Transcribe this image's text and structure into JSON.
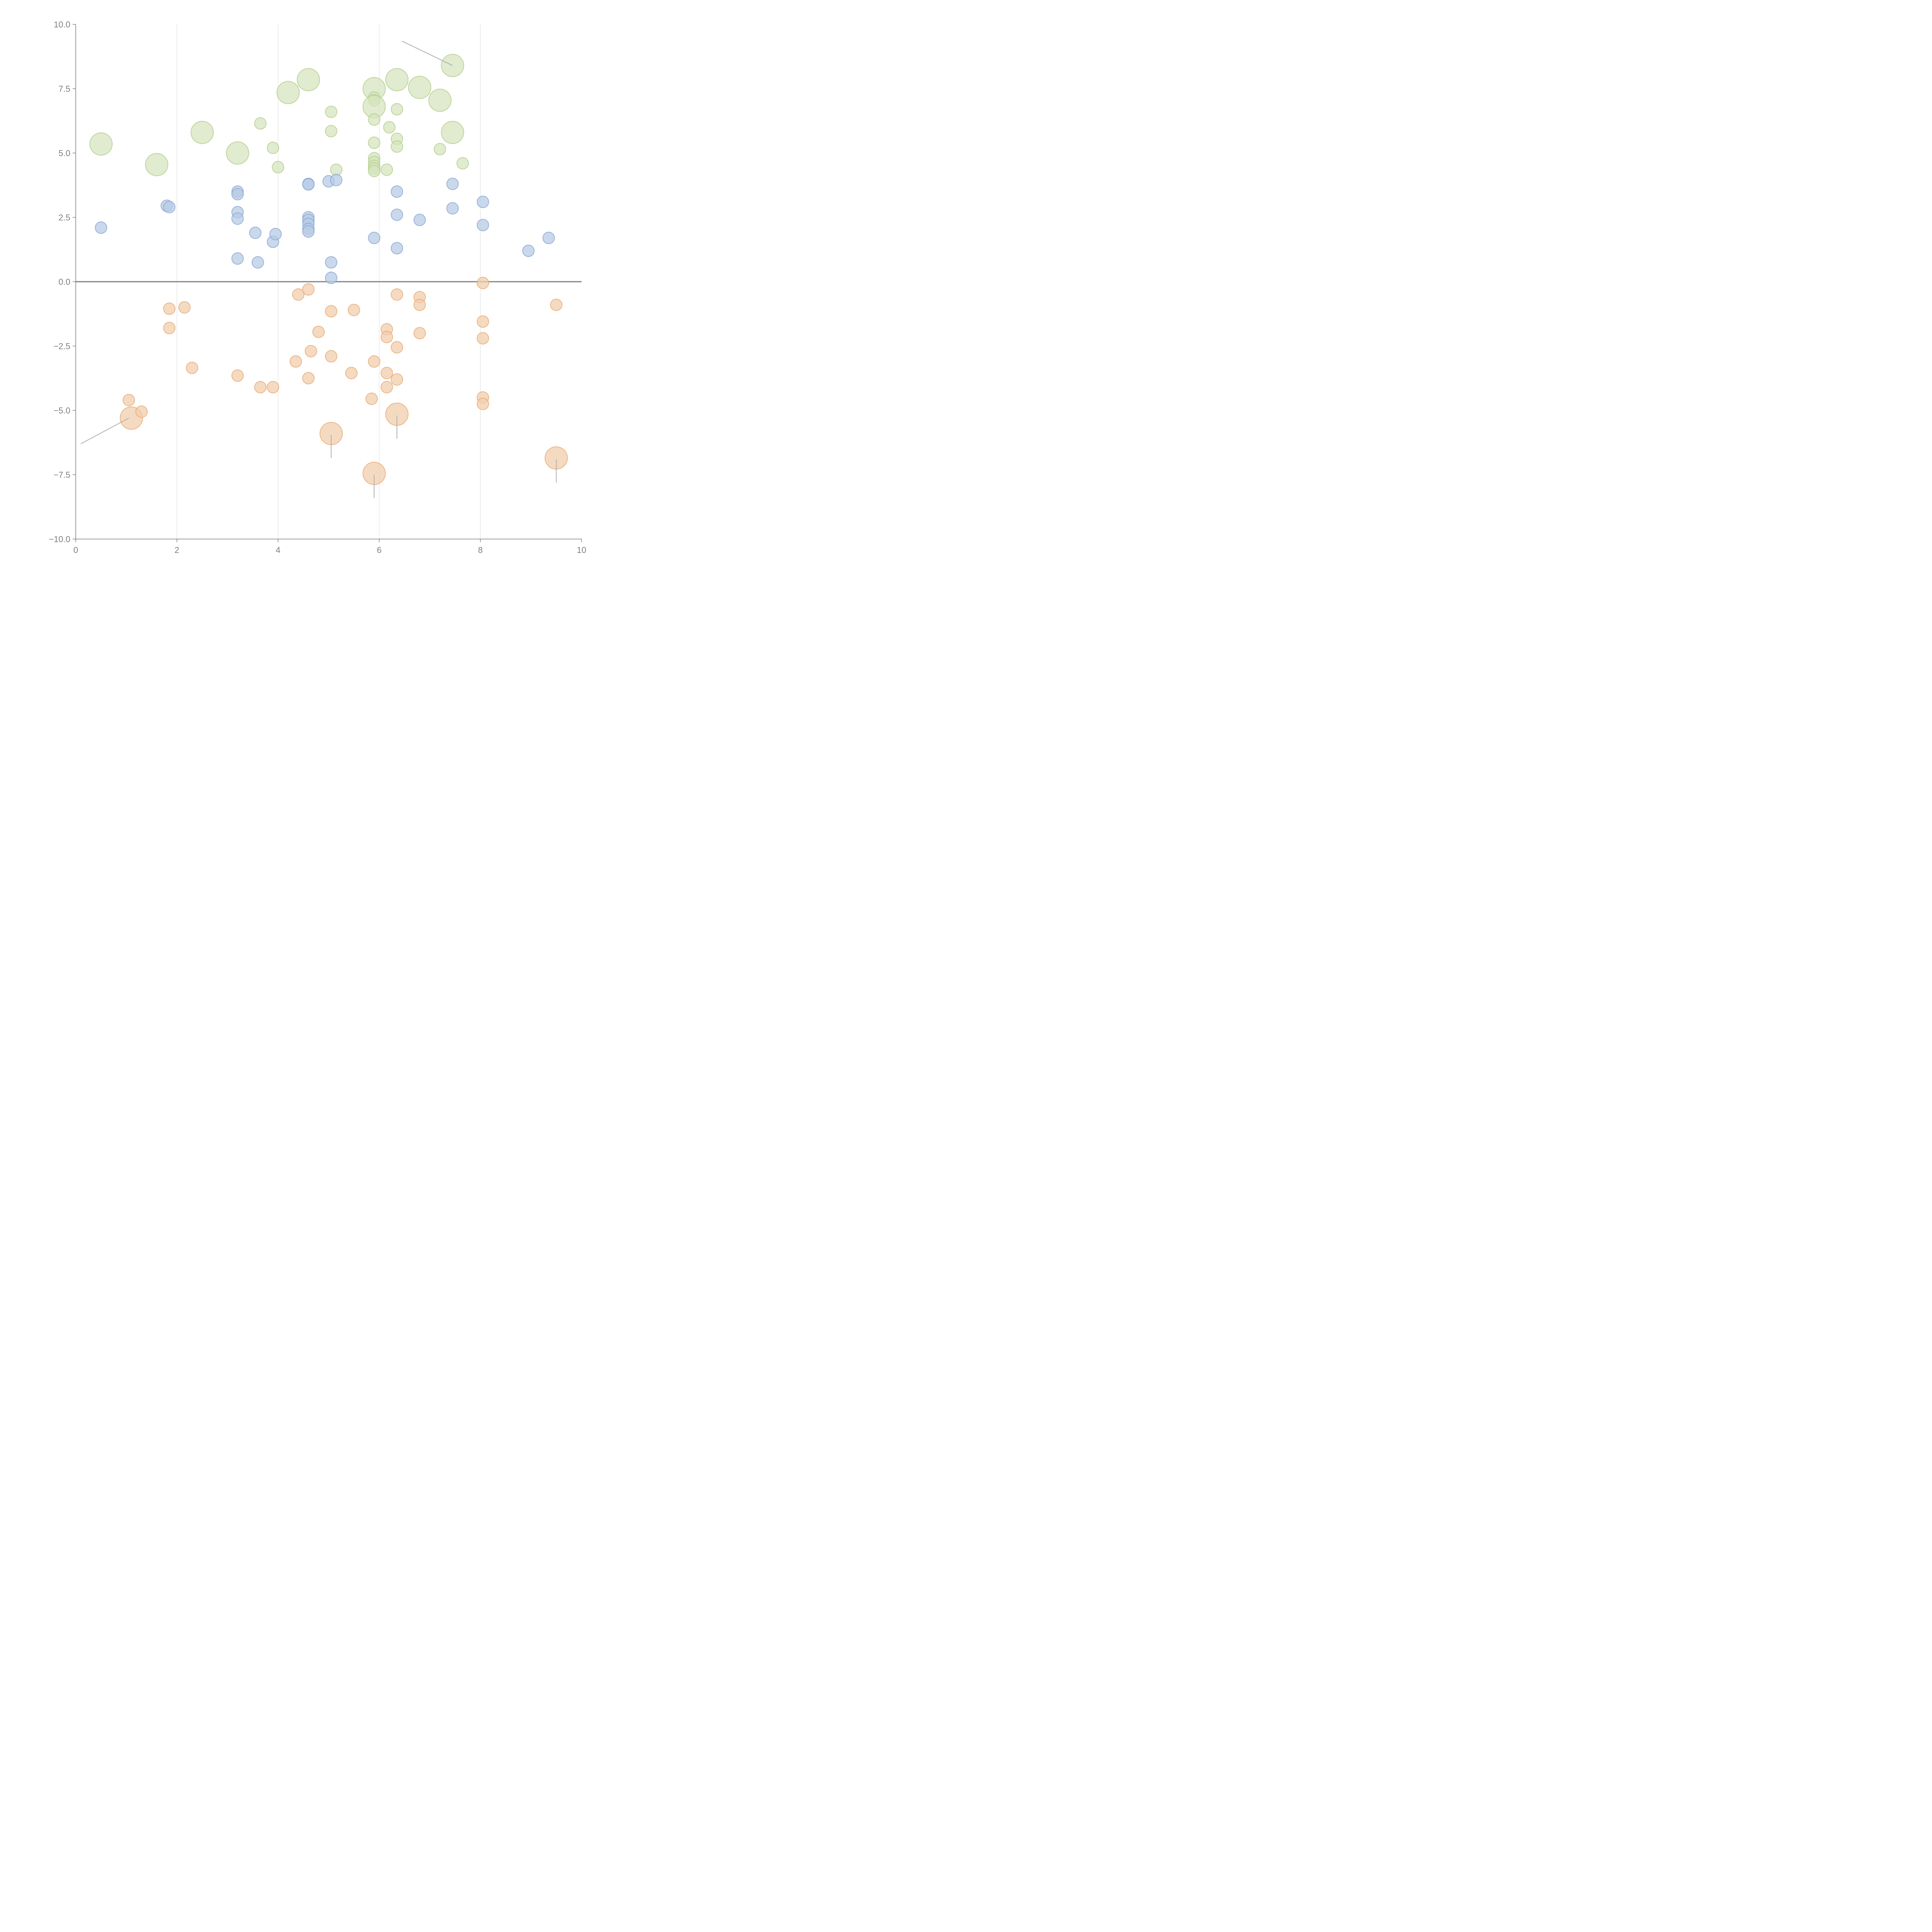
{
  "chart_data": {
    "type": "scatter",
    "title": "",
    "xlabel": "",
    "ylabel": "",
    "xlim": [
      0,
      10
    ],
    "ylim": [
      -10,
      10
    ],
    "x_ticks": [
      "0",
      "2",
      "4",
      "6",
      "8",
      "10"
    ],
    "y_ticks": [
      "10.0",
      "7.5",
      "5.0",
      "2.5",
      "0.0",
      "−2.5",
      "−5.0",
      "−7.5",
      "−10.0"
    ],
    "grid": "vertical",
    "legend": "none",
    "reference_line": {
      "y": 0
    },
    "colors": {
      "green": {
        "fill": "#d6e4bf",
        "stroke": "#b3cd8a"
      },
      "blue": {
        "fill": "#b8cbe5",
        "stroke": "#86a6d4"
      },
      "orange": {
        "fill": "#f1cdae",
        "stroke": "#e9a96f"
      }
    },
    "series": [
      {
        "name": "green",
        "points": [
          {
            "x": 0.5,
            "y": 5.35,
            "size": "large"
          },
          {
            "x": 1.6,
            "y": 4.55,
            "size": "large"
          },
          {
            "x": 2.5,
            "y": 5.8,
            "size": "large"
          },
          {
            "x": 3.2,
            "y": 5.0,
            "size": "large"
          },
          {
            "x": 3.65,
            "y": 6.15,
            "size": "small"
          },
          {
            "x": 3.9,
            "y": 5.2,
            "size": "small"
          },
          {
            "x": 4.0,
            "y": 4.45,
            "size": "small"
          },
          {
            "x": 4.2,
            "y": 7.35,
            "size": "large"
          },
          {
            "x": 4.6,
            "y": 7.85,
            "size": "large"
          },
          {
            "x": 5.05,
            "y": 6.6,
            "size": "small"
          },
          {
            "x": 5.05,
            "y": 5.85,
            "size": "small"
          },
          {
            "x": 5.15,
            "y": 4.35,
            "size": "small"
          },
          {
            "x": 5.9,
            "y": 7.5,
            "size": "large"
          },
          {
            "x": 5.9,
            "y": 7.15,
            "size": "small"
          },
          {
            "x": 5.9,
            "y": 7.05,
            "size": "small"
          },
          {
            "x": 5.9,
            "y": 6.8,
            "size": "large"
          },
          {
            "x": 5.9,
            "y": 6.3,
            "size": "small"
          },
          {
            "x": 5.9,
            "y": 5.4,
            "size": "small"
          },
          {
            "x": 5.9,
            "y": 4.8,
            "size": "small"
          },
          {
            "x": 5.9,
            "y": 4.65,
            "size": "small"
          },
          {
            "x": 5.9,
            "y": 4.5,
            "size": "small"
          },
          {
            "x": 5.9,
            "y": 4.4,
            "size": "small"
          },
          {
            "x": 5.9,
            "y": 4.3,
            "size": "small"
          },
          {
            "x": 6.15,
            "y": 4.35,
            "size": "small"
          },
          {
            "x": 6.2,
            "y": 6.0,
            "size": "small"
          },
          {
            "x": 6.35,
            "y": 7.85,
            "size": "large"
          },
          {
            "x": 6.35,
            "y": 6.7,
            "size": "small"
          },
          {
            "x": 6.35,
            "y": 5.55,
            "size": "small"
          },
          {
            "x": 6.35,
            "y": 5.25,
            "size": "small"
          },
          {
            "x": 6.8,
            "y": 7.55,
            "size": "large"
          },
          {
            "x": 7.2,
            "y": 7.05,
            "size": "large"
          },
          {
            "x": 7.2,
            "y": 5.15,
            "size": "small"
          },
          {
            "x": 7.45,
            "y": 8.4,
            "size": "large"
          },
          {
            "x": 7.45,
            "y": 5.8,
            "size": "large"
          },
          {
            "x": 7.65,
            "y": 4.6,
            "size": "small"
          }
        ]
      },
      {
        "name": "blue",
        "points": [
          {
            "x": 0.5,
            "y": 2.1,
            "size": "small"
          },
          {
            "x": 1.8,
            "y": 2.95,
            "size": "small"
          },
          {
            "x": 1.85,
            "y": 2.9,
            "size": "small"
          },
          {
            "x": 3.2,
            "y": 3.5,
            "size": "small"
          },
          {
            "x": 3.2,
            "y": 3.4,
            "size": "small"
          },
          {
            "x": 3.2,
            "y": 2.7,
            "size": "small"
          },
          {
            "x": 3.2,
            "y": 2.45,
            "size": "small"
          },
          {
            "x": 3.2,
            "y": 0.9,
            "size": "small"
          },
          {
            "x": 3.55,
            "y": 1.9,
            "size": "small"
          },
          {
            "x": 3.6,
            "y": 0.75,
            "size": "small"
          },
          {
            "x": 3.9,
            "y": 1.55,
            "size": "small"
          },
          {
            "x": 3.95,
            "y": 1.85,
            "size": "small"
          },
          {
            "x": 4.6,
            "y": 3.8,
            "size": "small"
          },
          {
            "x": 4.6,
            "y": 3.78,
            "size": "small"
          },
          {
            "x": 4.6,
            "y": 2.5,
            "size": "small"
          },
          {
            "x": 4.6,
            "y": 2.4,
            "size": "small"
          },
          {
            "x": 4.6,
            "y": 2.25,
            "size": "small"
          },
          {
            "x": 4.6,
            "y": 2.05,
            "size": "small"
          },
          {
            "x": 4.6,
            "y": 1.95,
            "size": "small"
          },
          {
            "x": 5.0,
            "y": 3.9,
            "size": "small"
          },
          {
            "x": 5.15,
            "y": 3.95,
            "size": "small"
          },
          {
            "x": 5.05,
            "y": 0.75,
            "size": "small"
          },
          {
            "x": 5.05,
            "y": 0.15,
            "size": "small"
          },
          {
            "x": 5.9,
            "y": 1.7,
            "size": "small"
          },
          {
            "x": 6.35,
            "y": 3.5,
            "size": "small"
          },
          {
            "x": 6.35,
            "y": 2.6,
            "size": "small"
          },
          {
            "x": 6.35,
            "y": 1.3,
            "size": "small"
          },
          {
            "x": 6.8,
            "y": 2.4,
            "size": "small"
          },
          {
            "x": 7.45,
            "y": 3.8,
            "size": "small"
          },
          {
            "x": 7.45,
            "y": 2.85,
            "size": "small"
          },
          {
            "x": 8.05,
            "y": 3.1,
            "size": "small"
          },
          {
            "x": 8.05,
            "y": 2.2,
            "size": "small"
          },
          {
            "x": 8.95,
            "y": 1.2,
            "size": "small"
          },
          {
            "x": 9.35,
            "y": 1.7,
            "size": "small"
          }
        ]
      },
      {
        "name": "orange",
        "points": [
          {
            "x": 1.05,
            "y": -4.6,
            "size": "small"
          },
          {
            "x": 1.1,
            "y": -5.3,
            "size": "large"
          },
          {
            "x": 1.3,
            "y": -5.05,
            "size": "small"
          },
          {
            "x": 1.85,
            "y": -1.05,
            "size": "small"
          },
          {
            "x": 1.85,
            "y": -1.8,
            "size": "small"
          },
          {
            "x": 2.15,
            "y": -1.0,
            "size": "small"
          },
          {
            "x": 2.3,
            "y": -3.35,
            "size": "small"
          },
          {
            "x": 3.2,
            "y": -3.65,
            "size": "small"
          },
          {
            "x": 3.65,
            "y": -4.1,
            "size": "small"
          },
          {
            "x": 3.9,
            "y": -4.1,
            "size": "small"
          },
          {
            "x": 4.35,
            "y": -3.1,
            "size": "small"
          },
          {
            "x": 4.4,
            "y": -0.5,
            "size": "small"
          },
          {
            "x": 4.6,
            "y": -0.3,
            "size": "small"
          },
          {
            "x": 4.6,
            "y": -3.75,
            "size": "small"
          },
          {
            "x": 4.65,
            "y": -2.7,
            "size": "small"
          },
          {
            "x": 4.8,
            "y": -1.95,
            "size": "small"
          },
          {
            "x": 5.05,
            "y": -1.15,
            "size": "small"
          },
          {
            "x": 5.05,
            "y": -2.9,
            "size": "small"
          },
          {
            "x": 5.05,
            "y": -5.9,
            "size": "large"
          },
          {
            "x": 5.45,
            "y": -3.55,
            "size": "small"
          },
          {
            "x": 5.5,
            "y": -1.1,
            "size": "small"
          },
          {
            "x": 5.85,
            "y": -4.55,
            "size": "small"
          },
          {
            "x": 5.9,
            "y": -3.1,
            "size": "small"
          },
          {
            "x": 5.9,
            "y": -7.45,
            "size": "large"
          },
          {
            "x": 6.15,
            "y": -1.85,
            "size": "small"
          },
          {
            "x": 6.15,
            "y": -2.15,
            "size": "small"
          },
          {
            "x": 6.15,
            "y": -3.55,
            "size": "small"
          },
          {
            "x": 6.15,
            "y": -4.1,
            "size": "small"
          },
          {
            "x": 6.35,
            "y": -0.5,
            "size": "small"
          },
          {
            "x": 6.35,
            "y": -2.55,
            "size": "small"
          },
          {
            "x": 6.35,
            "y": -3.8,
            "size": "small"
          },
          {
            "x": 6.35,
            "y": -5.15,
            "size": "large"
          },
          {
            "x": 6.8,
            "y": -0.6,
            "size": "small"
          },
          {
            "x": 6.8,
            "y": -0.9,
            "size": "small"
          },
          {
            "x": 6.8,
            "y": -2.0,
            "size": "small"
          },
          {
            "x": 8.05,
            "y": -0.05,
            "size": "small"
          },
          {
            "x": 8.05,
            "y": -1.55,
            "size": "small"
          },
          {
            "x": 8.05,
            "y": -2.2,
            "size": "small"
          },
          {
            "x": 8.05,
            "y": -4.5,
            "size": "small"
          },
          {
            "x": 8.05,
            "y": -4.75,
            "size": "small"
          },
          {
            "x": 9.5,
            "y": -0.9,
            "size": "small"
          },
          {
            "x": 9.5,
            "y": -6.85,
            "size": "large"
          }
        ]
      }
    ],
    "leader_lines": [
      {
        "from": [
          7.45,
          8.4
        ],
        "to": [
          6.45,
          9.35
        ]
      },
      {
        "from": [
          1.05,
          -5.3
        ],
        "to": [
          0.1,
          -6.3
        ]
      },
      {
        "from": [
          5.05,
          -5.95
        ],
        "to": [
          5.05,
          -6.85
        ]
      },
      {
        "from": [
          6.35,
          -5.2
        ],
        "to": [
          6.35,
          -6.1
        ]
      },
      {
        "from": [
          5.9,
          -7.5
        ],
        "to": [
          5.9,
          -8.4
        ]
      },
      {
        "from": [
          9.5,
          -6.9
        ],
        "to": [
          9.5,
          -7.8
        ]
      }
    ]
  }
}
